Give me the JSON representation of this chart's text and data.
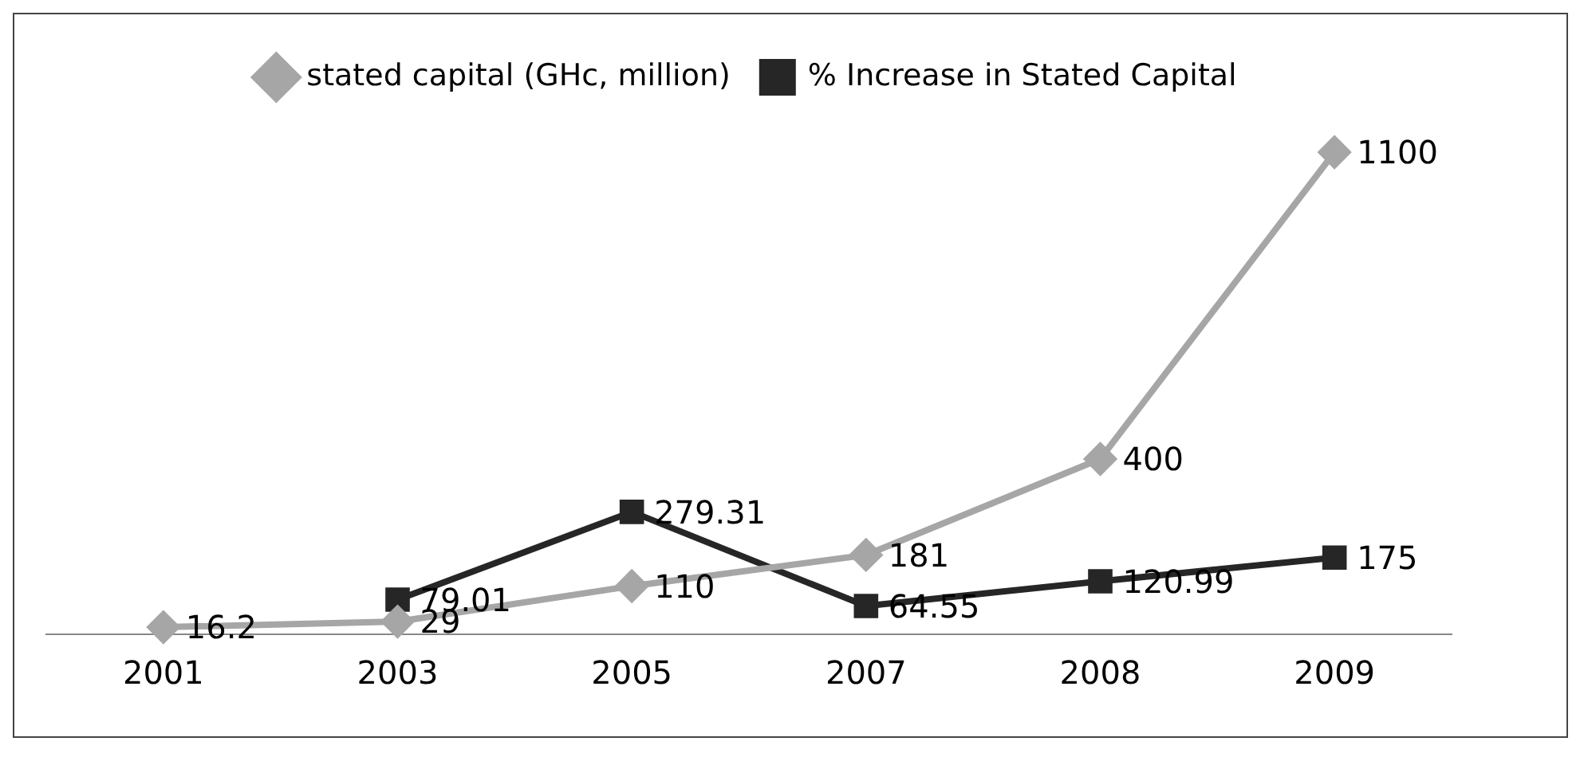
{
  "chart_data": {
    "type": "line",
    "categories": [
      "2001",
      "2003",
      "2005",
      "2007",
      "2008",
      "2009"
    ],
    "series": [
      {
        "name": "stated capital (GHc, million)",
        "color": "#a6a6a6",
        "marker": "diamond",
        "values": [
          16.2,
          29,
          110,
          181,
          400,
          1100
        ]
      },
      {
        "name": "% Increase in Stated Capital",
        "color": "#262626",
        "marker": "square",
        "values": [
          null,
          79.01,
          279.31,
          64.55,
          120.99,
          175
        ]
      }
    ],
    "data_labels": true,
    "legend": "top",
    "grid": false
  }
}
